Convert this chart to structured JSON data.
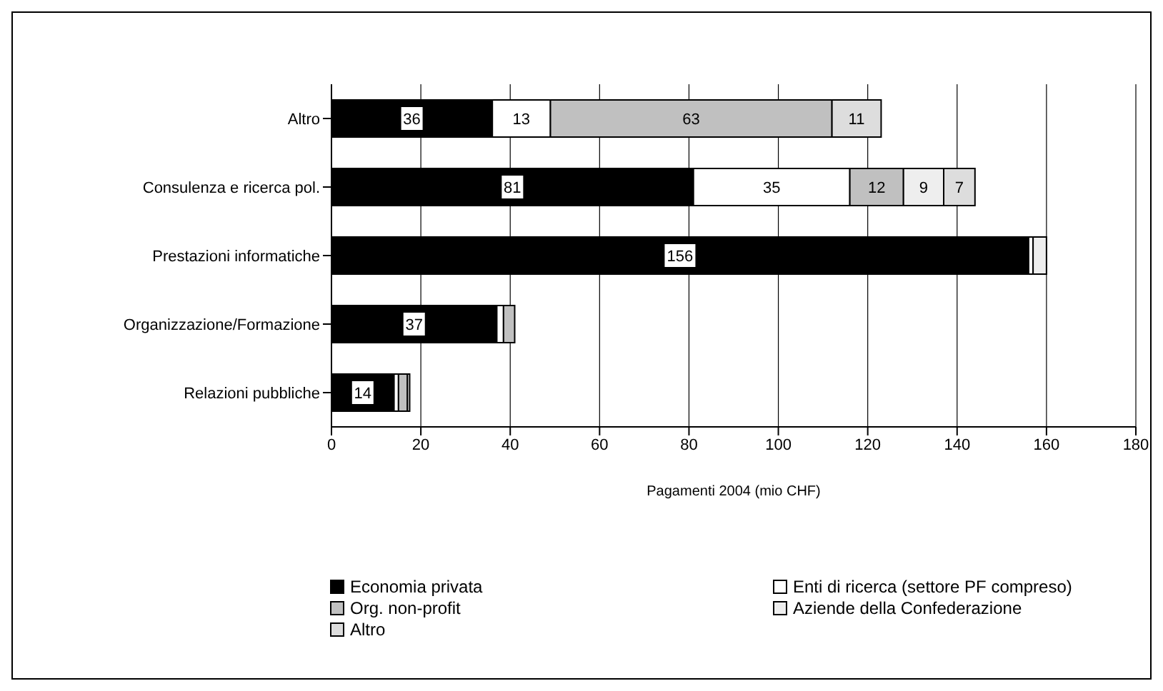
{
  "chart_data": {
    "type": "bar",
    "orientation": "horizontal",
    "stacked": true,
    "xlabel": "Pagamenti 2004 (mio CHF)",
    "categories": [
      "Altro",
      "Consulenza e ricerca pol.",
      "Prestazioni informatiche",
      "Organizzazione/Formazione",
      "Relazioni pubbliche"
    ],
    "series": [
      {
        "name": "Economia privata",
        "color": "#000000",
        "values": [
          36,
          81,
          156,
          37,
          14
        ],
        "value_labels": [
          "36",
          "81",
          "156",
          "37",
          "14"
        ]
      },
      {
        "name": "Enti di ricerca (settore PF compreso)",
        "color": "#ffffff",
        "values": [
          13,
          35,
          1,
          1.5,
          1
        ],
        "value_labels": [
          "13",
          "35",
          null,
          null,
          null
        ]
      },
      {
        "name": "Org. non-profit",
        "color": "#c0c0c0",
        "values": [
          63,
          12,
          0,
          2.5,
          2
        ],
        "value_labels": [
          "63",
          "12",
          null,
          null,
          null
        ]
      },
      {
        "name": "Aziende della Confederazione",
        "color": "#eeeeee",
        "values": [
          0,
          9,
          3,
          0,
          0.5
        ],
        "value_labels": [
          null,
          "9",
          null,
          null,
          null
        ]
      },
      {
        "name": "Altro",
        "color": "#dddddd",
        "values": [
          11,
          7,
          0,
          0,
          0
        ],
        "value_labels": [
          "11",
          "7",
          null,
          null,
          null
        ]
      }
    ],
    "xlim": [
      0,
      180
    ],
    "xticks": [
      0,
      20,
      40,
      60,
      80,
      100,
      120,
      140,
      160,
      180
    ],
    "grid": "x",
    "legend": "bottom"
  }
}
